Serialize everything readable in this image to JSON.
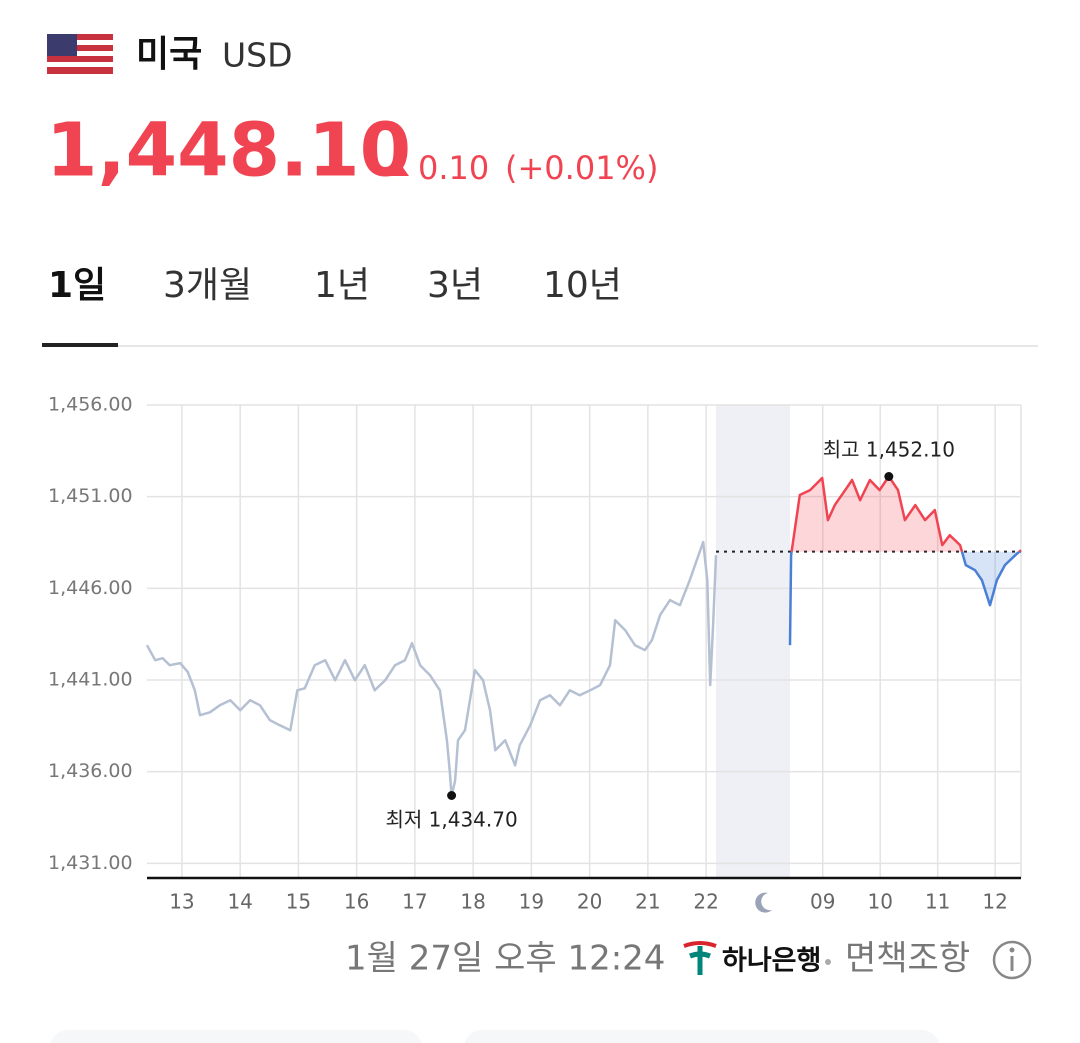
{
  "header": {
    "country": "미국",
    "currency": "USD",
    "price": "1,448.10",
    "change": "0.10",
    "change_pct": "(+0.01%)"
  },
  "tabs": {
    "items": [
      "1일",
      "3개월",
      "1년",
      "3년",
      "10년"
    ],
    "selected": 0
  },
  "chart_data": {
    "type": "line",
    "ylim": [
      1430.2,
      1456
    ],
    "yticks": [
      {
        "value": 1456,
        "label": "1,456.00"
      },
      {
        "value": 1451,
        "label": "1,451.00"
      },
      {
        "value": 1446,
        "label": "1,446.00"
      },
      {
        "value": 1441,
        "label": "1,441.00"
      },
      {
        "value": 1436,
        "label": "1,436.00"
      },
      {
        "value": 1431,
        "label": "1,431.00"
      }
    ],
    "grid": true,
    "reference": 1448,
    "segments": [
      {
        "xlim": [
          12.4,
          22.17
        ],
        "xticks": [
          13,
          14,
          15,
          16,
          17,
          18,
          19,
          20,
          21,
          22
        ],
        "color": "#b5c0d3",
        "x": [
          12.4,
          12.54,
          12.67,
          12.79,
          12.97,
          13.1,
          13.22,
          13.31,
          13.48,
          13.65,
          13.83,
          14.0,
          14.17,
          14.34,
          14.51,
          14.68,
          14.86,
          14.98,
          15.11,
          15.28,
          15.46,
          15.63,
          15.8,
          15.97,
          16.14,
          16.31,
          16.49,
          16.66,
          16.83,
          16.95,
          17.09,
          17.26,
          17.43,
          17.55,
          17.6,
          17.63,
          17.69,
          17.74,
          17.86,
          18.03,
          18.17,
          18.29,
          18.38,
          18.55,
          18.72,
          18.8,
          18.98,
          19.15,
          19.32,
          19.49,
          19.66,
          19.83,
          20.01,
          20.18,
          20.35,
          20.44,
          20.61,
          20.78,
          20.95,
          21.07,
          21.21,
          21.38,
          21.55,
          21.72,
          21.84,
          21.95,
          22.02,
          22.07,
          22.12,
          22.17
        ],
        "values": [
          1442.9,
          1442.08,
          1442.19,
          1441.81,
          1441.92,
          1441.43,
          1440.44,
          1439.08,
          1439.24,
          1439.62,
          1439.9,
          1439.35,
          1439.9,
          1439.62,
          1438.81,
          1438.53,
          1438.26,
          1440.44,
          1440.55,
          1441.81,
          1442.08,
          1440.99,
          1442.08,
          1440.99,
          1441.81,
          1440.44,
          1440.99,
          1441.81,
          1442.08,
          1443.01,
          1441.81,
          1441.26,
          1440.44,
          1437.71,
          1436.0,
          1434.7,
          1435.5,
          1437.71,
          1438.26,
          1441.54,
          1440.99,
          1439.35,
          1437.17,
          1437.71,
          1436.35,
          1437.44,
          1438.53,
          1439.9,
          1440.17,
          1439.62,
          1440.44,
          1440.17,
          1440.44,
          1440.72,
          1441.81,
          1444.26,
          1443.72,
          1442.9,
          1442.63,
          1443.17,
          1444.54,
          1445.36,
          1445.08,
          1446.45,
          1447.54,
          1448.52,
          1446.45,
          1440.72,
          1443.99,
          1447.81
        ],
        "annotation": {
          "label": "최저",
          "value_label": "1,434.70",
          "value": 1434.7,
          "x": 17.63
        }
      },
      {
        "xlim": [
          8.43,
          12.45
        ],
        "xticks": [
          {
            "value": 9,
            "label": "09"
          },
          10,
          11,
          12
        ],
        "up_color": "#f04452",
        "down_color": "#4a7fd6",
        "x": [
          8.43,
          8.45,
          8.6,
          8.78,
          8.99,
          9.09,
          9.21,
          9.39,
          9.51,
          9.65,
          9.82,
          9.99,
          10.15,
          10.31,
          10.43,
          10.61,
          10.78,
          10.95,
          11.08,
          11.21,
          11.39,
          11.49,
          11.65,
          11.77,
          11.91,
          12.03,
          12.17,
          12.35,
          12.45
        ],
        "values": [
          1442.9,
          1447.81,
          1451.09,
          1451.36,
          1452.02,
          1449.72,
          1450.54,
          1451.36,
          1451.91,
          1450.81,
          1451.91,
          1451.36,
          1452.1,
          1451.36,
          1449.72,
          1450.54,
          1449.72,
          1450.27,
          1448.36,
          1448.9,
          1448.36,
          1447.27,
          1446.99,
          1446.45,
          1445.08,
          1446.45,
          1447.27,
          1447.81,
          1448.08
        ],
        "annotation": {
          "label": "최고",
          "value_label": "1,452.10",
          "value": 1452.1,
          "x": 10.15
        }
      }
    ]
  },
  "footer": {
    "timestamp": "1월 27일 오후 12:24",
    "provider": "하나은행",
    "disclaimer": "면책조항"
  }
}
